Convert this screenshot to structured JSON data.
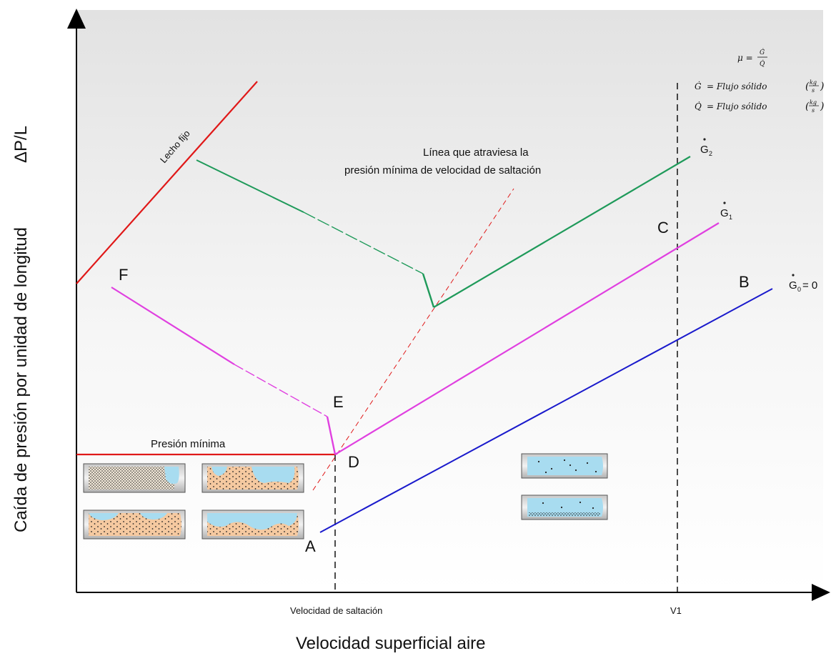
{
  "y_axis": {
    "symbol": "ΔP/L",
    "label": "Caída de presión por unidad de longitud"
  },
  "x_axis": {
    "label": "Velocidad superficial aire",
    "tick_saltacion": "Velocidad de saltación",
    "tick_v1": "V1"
  },
  "points": {
    "A": "A",
    "B": "B",
    "C": "C",
    "D": "D",
    "E": "E",
    "F": "F"
  },
  "series_labels": {
    "g0_symbol": "G",
    "g0_sub": "0",
    "g0_eq": " = 0",
    "g1_symbol": "G",
    "g1_sub": "1",
    "g2_symbol": "G",
    "g2_sub": "2"
  },
  "annotations": {
    "lecho_fijo": "Lecho fijo",
    "presion_minima": "Presión mínima",
    "linea_line1": "Línea que atraviesa la",
    "linea_line2": "presión mínima de velocidad de saltación"
  },
  "formulas": {
    "mu_lhs": "μ =",
    "mu_num": "Ġ",
    "mu_den": "Q̇",
    "g_def_lhs": "Ġ",
    "g_def_text": "= Flujo sólido",
    "q_def_lhs": "Q̇",
    "q_def_text": "= Flujo sólido",
    "unit_num": "kg",
    "unit_den": "s"
  },
  "colors": {
    "g0": "#1a1acc",
    "g1": "#e040e0",
    "g2": "#1f9a5a",
    "red": "#e01818",
    "water": "#a8dcf0",
    "sand": "#f5c9a0"
  }
}
